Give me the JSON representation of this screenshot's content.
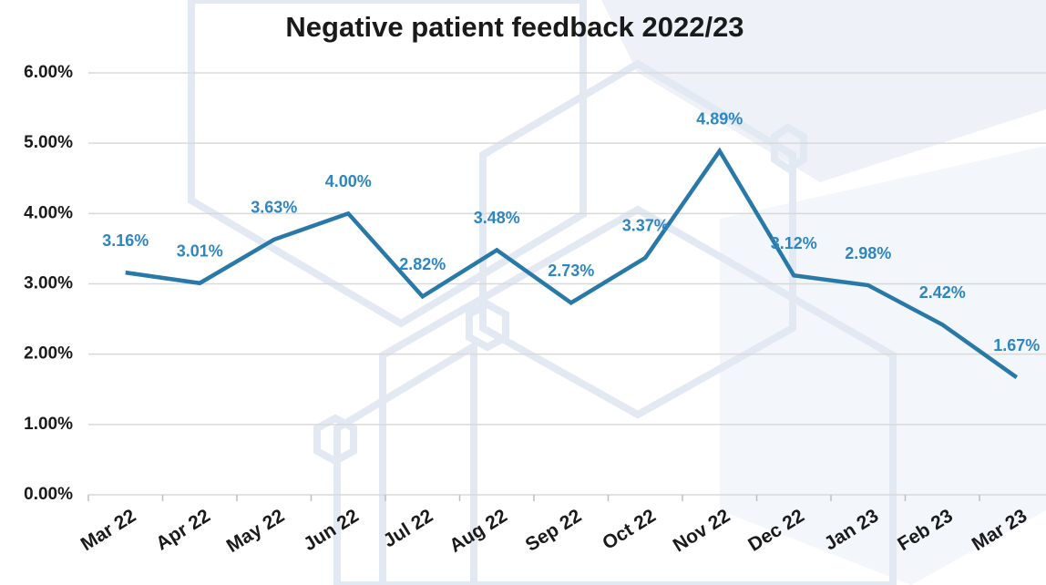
{
  "chart_data": {
    "type": "line",
    "title": "Negative patient feedback 2022/23",
    "categories": [
      "Mar 22",
      "Apr 22",
      "May 22",
      "Jun 22",
      "Jul 22",
      "Aug 22",
      "Sep 22",
      "Oct 22",
      "Nov 22",
      "Dec 22",
      "Jan 23",
      "Feb 23",
      "Mar 23"
    ],
    "series": [
      {
        "name": "Negative patient feedback",
        "color": "#2878a8",
        "values": [
          3.16,
          3.01,
          3.63,
          4.0,
          2.82,
          3.48,
          2.73,
          3.37,
          4.89,
          3.12,
          2.98,
          2.42,
          1.67
        ],
        "value_labels": [
          "3.16%",
          "3.01%",
          "3.63%",
          "4.00%",
          "2.82%",
          "3.48%",
          "2.73%",
          "3.37%",
          "4.89%",
          "3.12%",
          "2.98%",
          "2.42%",
          "1.67%"
        ]
      }
    ],
    "ylim": [
      0,
      6
    ],
    "yticks": [
      {
        "value": 0,
        "label": "0.00%"
      },
      {
        "value": 1,
        "label": "1.00%"
      },
      {
        "value": 2,
        "label": "2.00%"
      },
      {
        "value": 3,
        "label": "3.00%"
      },
      {
        "value": 4,
        "label": "4.00%"
      },
      {
        "value": 5,
        "label": "5.00%"
      },
      {
        "value": 6,
        "label": "6.00%"
      }
    ],
    "grid": true
  }
}
